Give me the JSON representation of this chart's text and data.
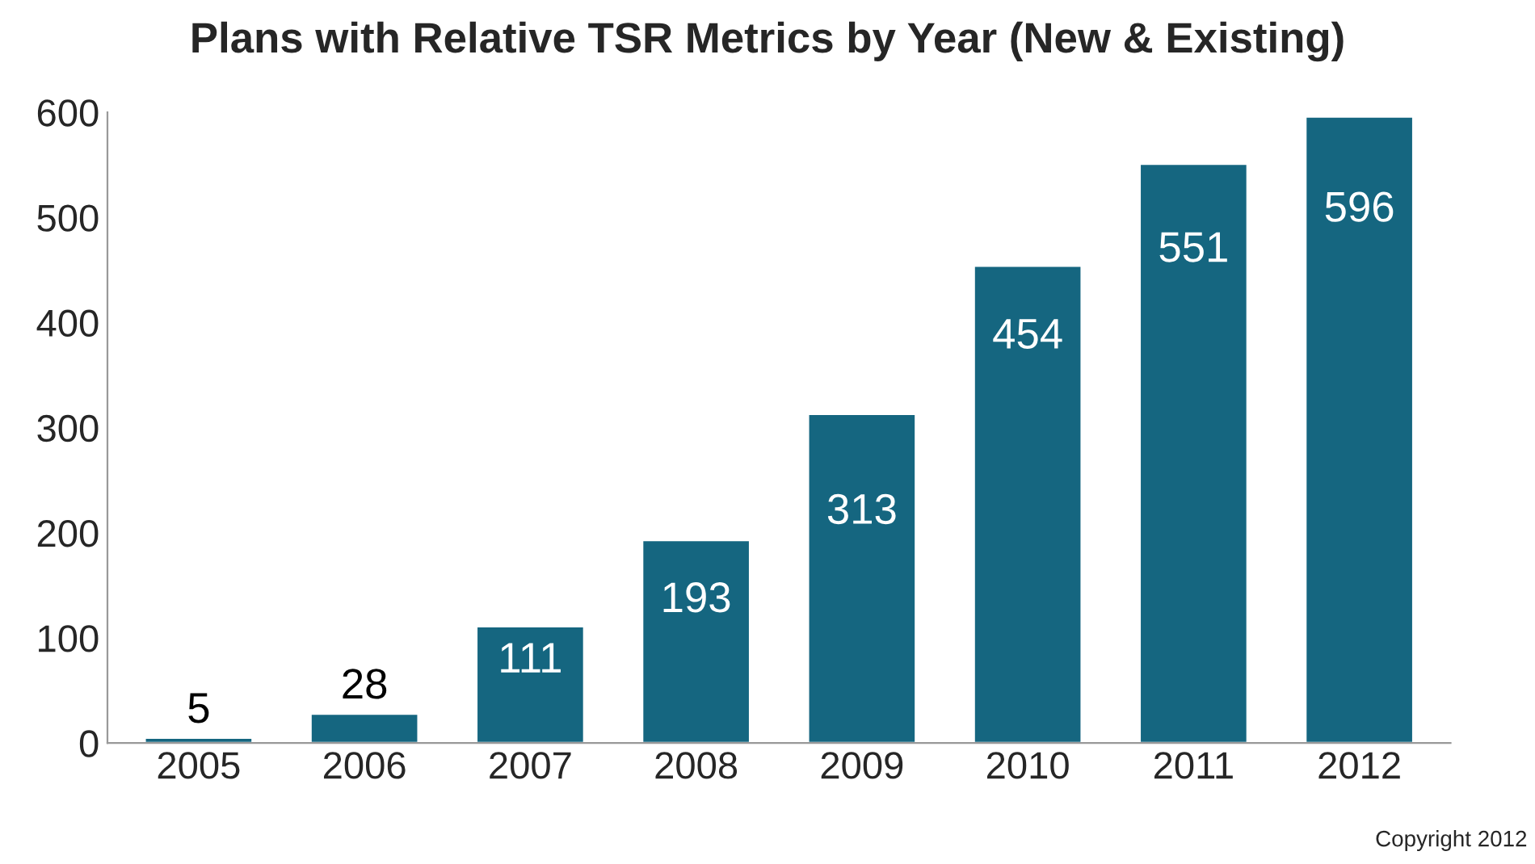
{
  "chart_data": {
    "type": "bar",
    "title": "Plans with Relative TSR Metrics by Year (New & Existing)",
    "categories": [
      "2005",
      "2006",
      "2007",
      "2008",
      "2009",
      "2010",
      "2011",
      "2012"
    ],
    "values": [
      5,
      28,
      111,
      193,
      313,
      454,
      551,
      596
    ],
    "color": "#156680",
    "ylim": [
      0,
      600
    ],
    "yticks": [
      0,
      100,
      200,
      300,
      400,
      500,
      600
    ],
    "data_labels": true,
    "grid": false,
    "legend": false,
    "annotations": [
      "Copyright 2012"
    ]
  }
}
